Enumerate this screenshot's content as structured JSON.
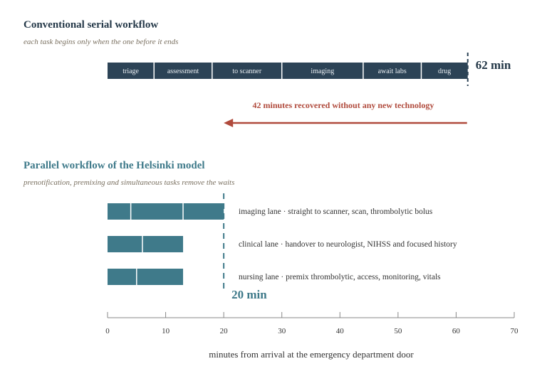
{
  "serial": {
    "title": "Conventional serial workflow",
    "subtitle": "each task begins only when the one before it ends",
    "total_label": "62 min",
    "tasks": [
      {
        "label": "triage",
        "start": 0,
        "end": 8
      },
      {
        "label": "assessment",
        "start": 8,
        "end": 18
      },
      {
        "label": "to scanner",
        "start": 18,
        "end": 30
      },
      {
        "label": "imaging",
        "start": 30,
        "end": 44
      },
      {
        "label": "await labs",
        "start": 44,
        "end": 54
      },
      {
        "label": "drug",
        "start": 54,
        "end": 62
      }
    ],
    "end_minute": 62
  },
  "savings": {
    "label": "42 minutes recovered without any new technology",
    "from_minute": 62,
    "to_minute": 20
  },
  "parallel": {
    "title": "Parallel workflow of the Helsinki model",
    "subtitle": "prenotification, premixing and simultaneous tasks remove the waits",
    "total_label": "20 min",
    "end_minute": 20,
    "separator": "·",
    "lanes": [
      {
        "name": "imaging lane",
        "description": "straight to scanner, scan, thrombolytic bolus",
        "segments": [
          [
            0,
            4
          ],
          [
            4,
            13
          ],
          [
            13,
            20
          ]
        ]
      },
      {
        "name": "clinical lane",
        "description": "handover to neurologist, NIHSS and focused history",
        "segments": [
          [
            0,
            6
          ],
          [
            6,
            13
          ]
        ]
      },
      {
        "name": "nursing lane",
        "description": "premix thrombolytic, access, monitoring, vitals",
        "segments": [
          [
            0,
            5
          ],
          [
            5,
            13
          ]
        ]
      }
    ]
  },
  "axis": {
    "label": "minutes from arrival at the emergency department door",
    "min": 0,
    "max": 70,
    "ticks": [
      0,
      10,
      20,
      30,
      40,
      50,
      60,
      70
    ]
  },
  "colors": {
    "serial_bar": "#2c4356",
    "parallel_bar": "#3f7a8a",
    "parallel_title": "#3f7a8a",
    "serial_title": "#243848",
    "savings": "#b04a3c",
    "axis": "#888888",
    "text": "#333333",
    "subtitle": "#7a7060"
  }
}
